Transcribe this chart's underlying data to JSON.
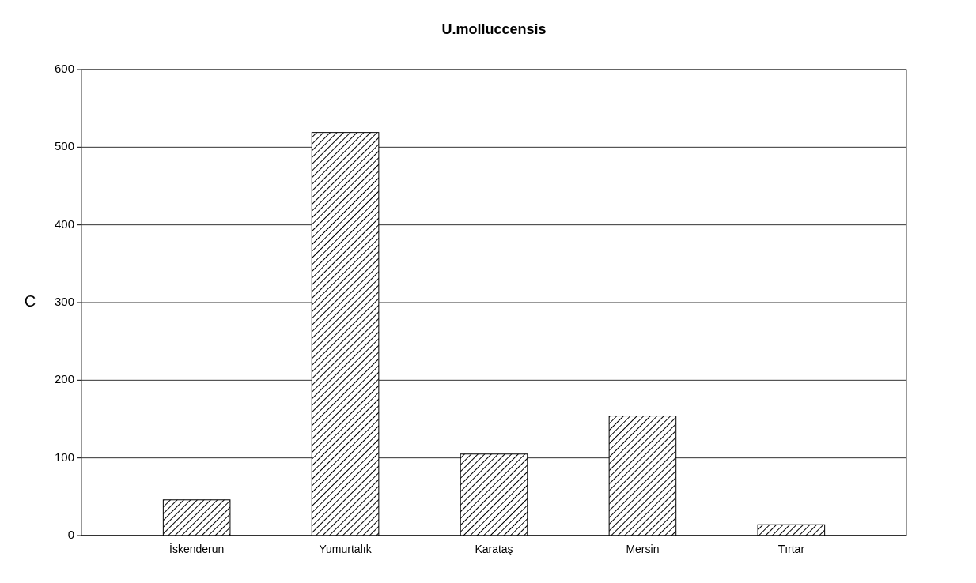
{
  "chart_data": {
    "type": "bar",
    "title": "U.molluccensis",
    "ylabel": "C",
    "categories": [
      "İskenderun",
      "Yumurtalık",
      "Karataş",
      "Mersin",
      "Tırtar"
    ],
    "values": [
      46,
      519,
      105,
      154,
      14
    ],
    "color": "#000000",
    "ylim": [
      0,
      600
    ],
    "yticks": [
      0,
      100,
      200,
      300,
      400,
      500,
      600
    ],
    "grid": "y"
  }
}
